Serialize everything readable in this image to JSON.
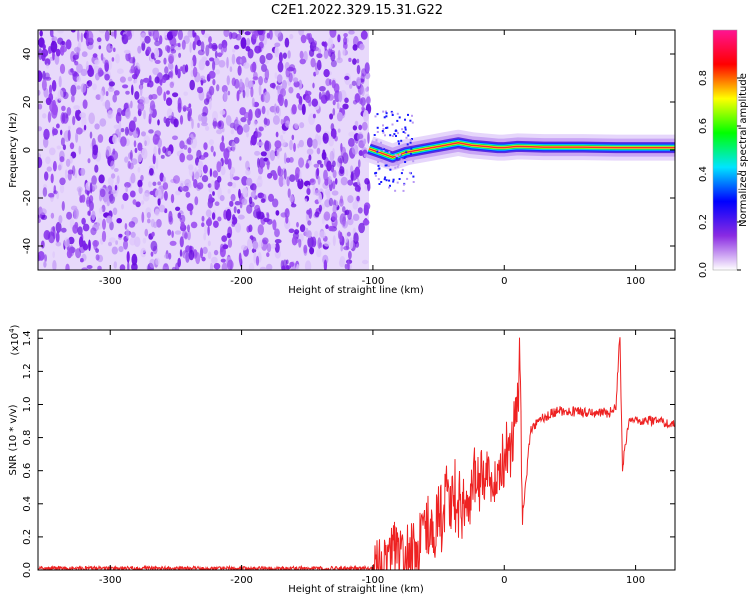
{
  "title": "C2E1.2022.329.15.31.G22",
  "chart_data": [
    {
      "type": "heatmap",
      "xlabel": "Height of straight line (km)",
      "ylabel": "Frequency (Hz)",
      "xlim": [
        -355,
        130
      ],
      "ylim": [
        -50,
        50
      ],
      "xticks": [
        -300,
        -200,
        -100,
        0,
        100
      ],
      "yticks": [
        -40,
        -20,
        0,
        20,
        40
      ],
      "noise_region_x": [
        -355,
        -103
      ],
      "carrier_trace": [
        {
          "x": -103,
          "y": 0.5
        },
        {
          "x": -95,
          "y": -1
        },
        {
          "x": -85,
          "y": -3
        },
        {
          "x": -75,
          "y": -1
        },
        {
          "x": -65,
          "y": 0
        },
        {
          "x": -55,
          "y": 1
        },
        {
          "x": -45,
          "y": 2
        },
        {
          "x": -35,
          "y": 3
        },
        {
          "x": -25,
          "y": 2
        },
        {
          "x": -15,
          "y": 1.5
        },
        {
          "x": -5,
          "y": 1
        },
        {
          "x": 0,
          "y": 1
        },
        {
          "x": 10,
          "y": 1.5
        },
        {
          "x": 30,
          "y": 1.2
        },
        {
          "x": 60,
          "y": 1.2
        },
        {
          "x": 85,
          "y": 1
        },
        {
          "x": 100,
          "y": 1
        },
        {
          "x": 130,
          "y": 1
        }
      ],
      "colorbar": {
        "label": "Normalized spectral amplitude",
        "range": [
          0,
          1
        ],
        "ticks": [
          "0.0",
          "0.2",
          "0.4",
          "0.6",
          "0.8"
        ],
        "colors": [
          "#ffffff",
          "#8a2be2",
          "#0000ff",
          "#00e5ff",
          "#00ff00",
          "#ffff00",
          "#ff0000",
          "#ff1493"
        ]
      }
    },
    {
      "type": "line",
      "xlabel": "Height of straight line (km)",
      "ylabel": "SNR (10 * v/v)",
      "yscale_note": "(x10",
      "yscale_exp": "4",
      "yscale_close": ")",
      "xlim": [
        -355,
        130
      ],
      "ylim": [
        0,
        1.45
      ],
      "xticks": [
        -300,
        -200,
        -100,
        0,
        100
      ],
      "yticks": [
        "0.0",
        "0.2",
        "0.4",
        "0.6",
        "0.8",
        "1.0",
        "1.2",
        "1.4"
      ],
      "color": "#ee2222",
      "x": [
        -355,
        -300,
        -250,
        -200,
        -150,
        -100,
        -90,
        -80,
        -70,
        -60,
        -50,
        -40,
        -30,
        -20,
        -10,
        0,
        5,
        10,
        12,
        14,
        20,
        30,
        40,
        50,
        60,
        70,
        80,
        85,
        88,
        90,
        95,
        100,
        110,
        120,
        130
      ],
      "y": [
        0.01,
        0.01,
        0.01,
        0.01,
        0.01,
        0.01,
        0.05,
        0.12,
        0.08,
        0.2,
        0.3,
        0.45,
        0.38,
        0.55,
        0.5,
        0.7,
        0.75,
        0.95,
        1.25,
        0.3,
        0.85,
        0.92,
        0.96,
        0.96,
        0.95,
        0.95,
        0.95,
        0.98,
        1.43,
        0.62,
        0.92,
        0.91,
        0.9,
        0.89,
        0.88
      ]
    }
  ]
}
